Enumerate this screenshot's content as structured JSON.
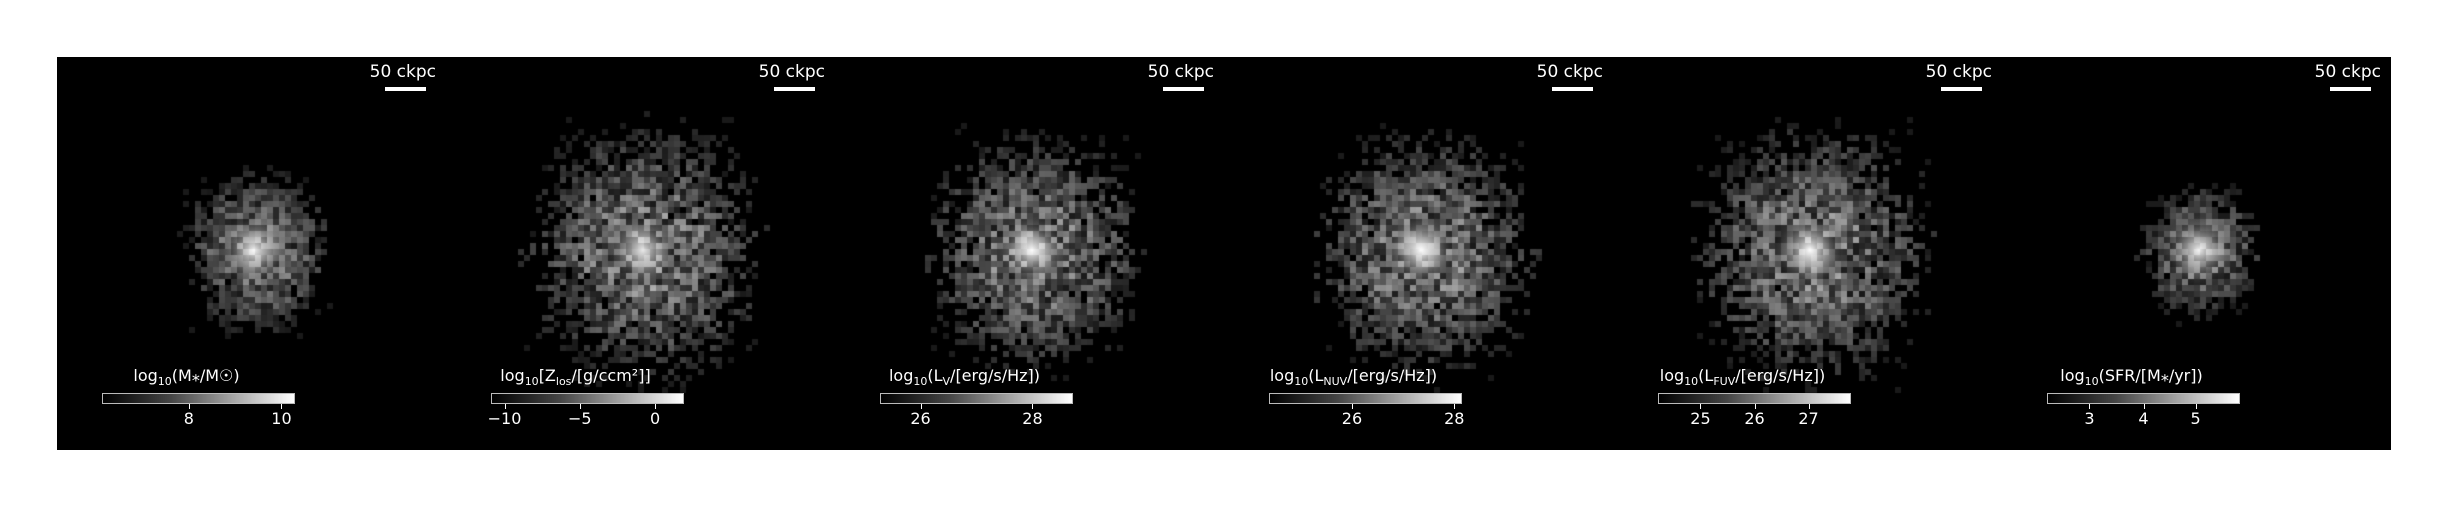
{
  "scalebar_text": "50 ckpc",
  "panels": [
    {
      "id": "stellar-mass",
      "label_prefix": "log",
      "label_sub": "10",
      "label_quantity": "(M⁎/M☉)",
      "ticks": [
        {
          "label": "8",
          "pos": 0.45
        },
        {
          "label": "10",
          "pos": 0.93
        }
      ],
      "spread": 0.22,
      "core": 0.9,
      "density": 0.55
    },
    {
      "id": "metal-surface-density",
      "label_prefix": "log",
      "label_sub": "10",
      "label_quantity": "[Z",
      "label_quantity_sub": "los",
      "label_quantity_rest": "/[g/ccm²]]",
      "ticks": [
        {
          "label": "−10",
          "pos": 0.07
        },
        {
          "label": "−5",
          "pos": 0.46
        },
        {
          "label": "0",
          "pos": 0.85
        }
      ],
      "spread": 0.36,
      "core": 0.85,
      "density": 0.75
    },
    {
      "id": "v-band-luminosity",
      "label_prefix": "log",
      "label_sub": "10",
      "label_quantity": "(L",
      "label_quantity_sub": "V",
      "label_quantity_rest": "/[erg/s/Hz])",
      "ticks": [
        {
          "label": "26",
          "pos": 0.21
        },
        {
          "label": "28",
          "pos": 0.79
        }
      ],
      "spread": 0.33,
      "core": 0.95,
      "density": 0.7
    },
    {
      "id": "nuv-luminosity",
      "label_prefix": "log",
      "label_sub": "10",
      "label_quantity": "(L",
      "label_quantity_sub": "NUV",
      "label_quantity_rest": "/[erg/s/Hz])",
      "ticks": [
        {
          "label": "26",
          "pos": 0.43
        },
        {
          "label": "28",
          "pos": 0.96
        }
      ],
      "spread": 0.34,
      "core": 1.0,
      "density": 0.75
    },
    {
      "id": "fuv-luminosity",
      "label_prefix": "log",
      "label_sub": "10",
      "label_quantity": "(L",
      "label_quantity_sub": "FUV",
      "label_quantity_rest": "/[erg/s/Hz])",
      "ticks": [
        {
          "label": "25",
          "pos": 0.22
        },
        {
          "label": "26",
          "pos": 0.5
        },
        {
          "label": "27",
          "pos": 0.78
        }
      ],
      "spread": 0.36,
      "core": 1.0,
      "density": 0.8
    },
    {
      "id": "star-formation-rate",
      "label_prefix": "log",
      "label_sub": "10",
      "label_quantity": "(SFR/[M⁎/yr])",
      "ticks": [
        {
          "label": "3",
          "pos": 0.22
        },
        {
          "label": "4",
          "pos": 0.5
        },
        {
          "label": "5",
          "pos": 0.77
        }
      ],
      "spread": 0.18,
      "core": 0.9,
      "density": 0.35
    }
  ]
}
